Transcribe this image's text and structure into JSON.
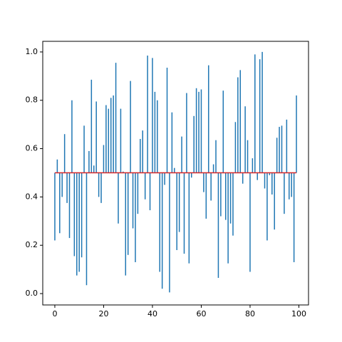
{
  "chart_data": {
    "type": "stem",
    "x": [
      0,
      1,
      2,
      3,
      4,
      5,
      6,
      7,
      8,
      9,
      10,
      11,
      12,
      13,
      14,
      15,
      16,
      17,
      18,
      19,
      20,
      21,
      22,
      23,
      24,
      25,
      26,
      27,
      28,
      29,
      30,
      31,
      32,
      33,
      34,
      35,
      36,
      37,
      38,
      39,
      40,
      41,
      42,
      43,
      44,
      45,
      46,
      47,
      48,
      49,
      50,
      51,
      52,
      53,
      54,
      55,
      56,
      57,
      58,
      59,
      60,
      61,
      62,
      63,
      64,
      65,
      66,
      67,
      68,
      69,
      70,
      71,
      72,
      73,
      74,
      75,
      76,
      77,
      78,
      79,
      80,
      81,
      82,
      83,
      84,
      85,
      86,
      87,
      88,
      89,
      90,
      91,
      92,
      93,
      94,
      95,
      96,
      97,
      98,
      99
    ],
    "values": [
      0.22,
      0.555,
      0.25,
      0.4,
      0.66,
      0.375,
      0.23,
      0.8,
      0.155,
      0.075,
      0.09,
      0.15,
      0.695,
      0.035,
      0.59,
      0.885,
      0.53,
      0.795,
      0.4,
      0.375,
      0.615,
      0.78,
      0.765,
      0.81,
      0.82,
      0.955,
      0.29,
      0.765,
      0.505,
      0.075,
      0.16,
      0.88,
      0.27,
      0.13,
      0.33,
      0.64,
      0.675,
      0.39,
      0.985,
      0.345,
      0.975,
      0.835,
      0.8,
      0.09,
      0.02,
      0.45,
      0.935,
      0.005,
      0.75,
      0.52,
      0.18,
      0.255,
      0.65,
      0.165,
      0.83,
      0.125,
      0.48,
      0.735,
      0.85,
      0.835,
      0.845,
      0.42,
      0.31,
      0.945,
      0.385,
      0.535,
      0.635,
      0.065,
      0.32,
      0.84,
      0.305,
      0.125,
      0.29,
      0.24,
      0.71,
      0.895,
      0.925,
      0.455,
      0.775,
      0.635,
      0.09,
      0.56,
      0.99,
      0.47,
      0.97,
      1.0,
      0.435,
      0.22,
      0.49,
      0.41,
      0.265,
      0.645,
      0.69,
      0.695,
      0.33,
      0.72,
      0.39,
      0.4,
      0.13,
      0.82
    ],
    "color": "#1f77b4",
    "baseline": 0.5,
    "baseline_color": "#d62728",
    "xlim": [
      -4.95,
      103.95
    ],
    "xticks": [
      0,
      20,
      40,
      60,
      80,
      100
    ],
    "ylim": [
      -0.047,
      1.044
    ],
    "yticks": [
      {
        "value": 0,
        "label": "0.0"
      },
      0.2,
      0.4,
      0.6,
      0.8,
      {
        "value": 1,
        "label": "1.0"
      }
    ]
  }
}
